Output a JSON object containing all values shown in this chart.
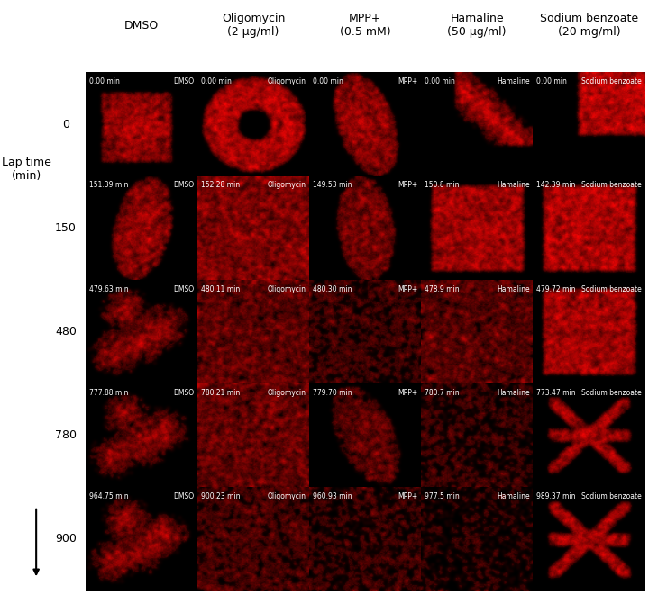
{
  "col_headers": [
    "DMSO",
    "Oligomycin\n(2 μg/ml)",
    "MPP+\n(0.5 mM)",
    "Hamaline\n(50 μg/ml)",
    "Sodium benzoate\n(20 mg/ml)"
  ],
  "row_labels": [
    "0",
    "150",
    "480",
    "780",
    "900"
  ],
  "lap_time_label": "Lap time\n(min)",
  "cell_timestamps": [
    [
      "0.00 min",
      "DMSO",
      "0.00 min",
      "Oligomycin",
      "0.00 min",
      "MPP+",
      "0.00 min",
      "Hamaline",
      "0.00 min",
      "Sodium benzoate"
    ],
    [
      "151.39 min",
      "DMSO",
      "152.28 min",
      "Oligomycin",
      "149.53 min",
      "MPP+",
      "150.8 min",
      "Hamaline",
      "142.39 min",
      "Sodium benzoate"
    ],
    [
      "479.63 min",
      "DMSO",
      "480.11 min",
      "Oligomycin",
      "480.30 min",
      "MPP+",
      "478.9 min",
      "Hamaline",
      "479.72 min",
      "Sodium benzoate"
    ],
    [
      "777.88 min",
      "DMSO",
      "780.21 min",
      "Oligomycin",
      "779.70 min",
      "MPP+",
      "780.7 min",
      "Hamaline",
      "773.47 min",
      "Sodium benzoate"
    ],
    [
      "964.75 min",
      "DMSO",
      "900.23 min",
      "Oligomycin",
      "960.93 min",
      "MPP+",
      "977.5 min",
      "Hamaline",
      "989.37 min",
      "Sodium benzoate"
    ]
  ],
  "bg_color": "white",
  "cell_bg": "black",
  "text_color": "white",
  "red_color": "#FF0000",
  "header_fontsize": 9,
  "label_fontsize": 9,
  "timestamp_fontsize": 5.5
}
